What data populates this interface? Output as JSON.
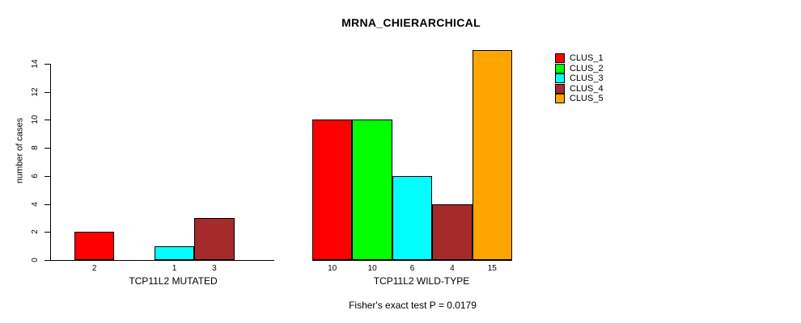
{
  "chart_data": {
    "type": "bar",
    "title": "MRNA_CHIERARCHICAL",
    "ylabel": "number of cases",
    "ylim": [
      0,
      15
    ],
    "yticks": [
      0,
      2,
      4,
      6,
      8,
      10,
      12,
      14
    ],
    "grid": false,
    "legend_position": "right",
    "categories": [
      "CLUS_1",
      "CLUS_2",
      "CLUS_3",
      "CLUS_4",
      "CLUS_5"
    ],
    "series_colors": [
      "#ff0000",
      "#00ff00",
      "#00ffff",
      "#a52a2a",
      "#ffa500"
    ],
    "groups": [
      {
        "label": "TCP11L2 MUTATED",
        "values": [
          2,
          0,
          1,
          3,
          0
        ]
      },
      {
        "label": "TCP11L2 WILD-TYPE",
        "values": [
          10,
          10,
          6,
          4,
          15
        ]
      }
    ],
    "annotation": "Fisher's exact test P = 0.0179"
  },
  "legend": {
    "items": [
      {
        "label": "CLUS_1",
        "color": "#ff0000"
      },
      {
        "label": "CLUS_2",
        "color": "#00ff00"
      },
      {
        "label": "CLUS_3",
        "color": "#00ffff"
      },
      {
        "label": "CLUS_4",
        "color": "#a52a2a"
      },
      {
        "label": "CLUS_5",
        "color": "#ffa500"
      }
    ]
  }
}
